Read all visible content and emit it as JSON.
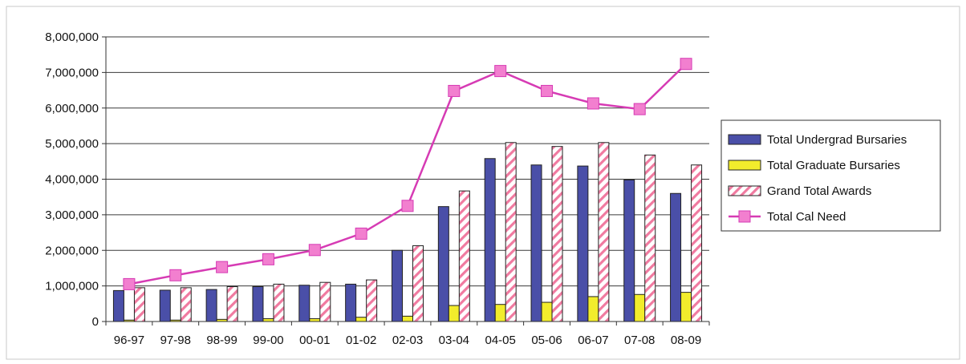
{
  "chart_data": {
    "type": "bar",
    "title": "",
    "xlabel": "",
    "ylabel": "",
    "categories": [
      "96-97",
      "97-98",
      "98-99",
      "99-00",
      "00-01",
      "01-02",
      "02-03",
      "03-04",
      "04-05",
      "05-06",
      "06-07",
      "07-08",
      "08-09"
    ],
    "ylim": [
      0,
      8000000
    ],
    "yticks": [
      0,
      1000000,
      2000000,
      3000000,
      4000000,
      5000000,
      6000000,
      7000000,
      8000000
    ],
    "ytick_labels": [
      "0",
      "1,000,000",
      "2,000,000",
      "3,000,000",
      "4,000,000",
      "5,000,000",
      "6,000,000",
      "7,000,000",
      "8,000,000"
    ],
    "grid": true,
    "legend_position": "right",
    "series": [
      {
        "name": "Total Undergrad Bursaries",
        "type": "bar",
        "color": "#4a4fa8",
        "values": [
          870000,
          880000,
          900000,
          980000,
          1020000,
          1050000,
          2000000,
          3230000,
          4580000,
          4400000,
          4370000,
          3980000,
          3600000
        ]
      },
      {
        "name": "Total Graduate Bursaries",
        "type": "bar",
        "color": "#f2ec2c",
        "values": [
          40000,
          40000,
          60000,
          80000,
          80000,
          120000,
          150000,
          450000,
          480000,
          540000,
          700000,
          760000,
          820000
        ]
      },
      {
        "name": "Grand Total Awards",
        "type": "bar",
        "color": "#f07aa0",
        "pattern": "diagonal-hatch",
        "values": [
          950000,
          950000,
          980000,
          1050000,
          1100000,
          1170000,
          2130000,
          3670000,
          5030000,
          4920000,
          5030000,
          4680000,
          4400000
        ]
      },
      {
        "name": "Total Cal Need",
        "type": "line",
        "color": "#d63bb4",
        "values": [
          1050000,
          1300000,
          1530000,
          1750000,
          2010000,
          2470000,
          3250000,
          6480000,
          7040000,
          6480000,
          6130000,
          5970000,
          7240000
        ]
      }
    ]
  }
}
